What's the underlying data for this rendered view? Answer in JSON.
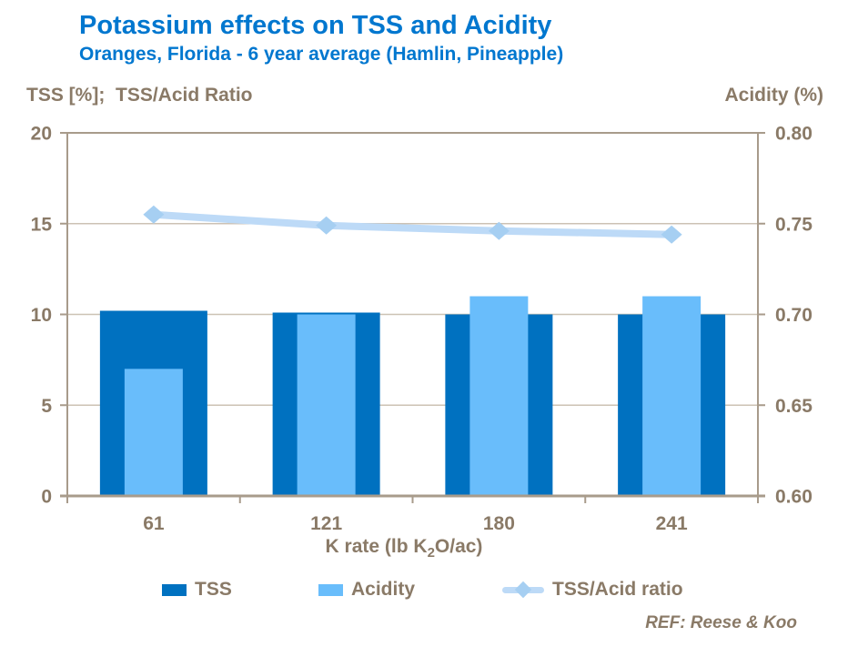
{
  "header": {
    "title": "Potassium effects on TSS and Acidity",
    "subtitle": "Oranges, Florida - 6 year average (Hamlin, Pineapple)"
  },
  "axes": {
    "left_title": "TSS [%];  TSS/Acid Ratio",
    "right_title": "Acidity (%)",
    "x_title_parts": {
      "pre": "K rate (lb K",
      "sub": "2",
      "post": "O/ac)"
    },
    "left_ticks": {
      "values": [
        0,
        5,
        10,
        15,
        20
      ],
      "labels": [
        "0",
        "5",
        "10",
        "15",
        "20"
      ]
    },
    "right_ticks": {
      "values": [
        0.6,
        0.65,
        0.7,
        0.75,
        0.8
      ],
      "labels": [
        "0.60",
        "0.65",
        "0.70",
        "0.75",
        "0.80"
      ]
    }
  },
  "chart_data": {
    "type": "bar",
    "categories": [
      "61",
      "121",
      "180",
      "241"
    ],
    "series": [
      {
        "name": "TSS",
        "type": "bar",
        "axis": "left",
        "values": [
          10.2,
          10.1,
          10.0,
          10.0
        ]
      },
      {
        "name": "Acidity",
        "type": "bar",
        "axis": "right",
        "values": [
          0.67,
          0.7,
          0.71,
          0.71
        ]
      },
      {
        "name": "TSS/Acid ratio",
        "type": "line",
        "axis": "left",
        "values": [
          15.5,
          14.9,
          14.6,
          14.4
        ],
        "marker": "diamond"
      }
    ],
    "title": "Potassium effects on TSS and Acidity",
    "subtitle": "Oranges, Florida - 6 year average (Hamlin, Pineapple)",
    "xlabel": "K rate (lb K₂O/ac)",
    "ylabel_left": "TSS [%];  TSS/Acid Ratio",
    "ylabel_right": "Acidity (%)",
    "ylim_left": [
      0,
      20
    ],
    "ylim_right": [
      0.6,
      0.8
    ],
    "grid": "horizontal",
    "legend_position": "bottom"
  },
  "legend": {
    "tss_label": "TSS",
    "acidity_label": "Acidity",
    "ratio_label": "TSS/Acid ratio"
  },
  "footer": {
    "ref": "REF: Reese & Koo"
  },
  "colors": {
    "title_blue": "#0077cf",
    "text_brown": "#8a7a67",
    "gridline": "#ccc2b4",
    "axis_line": "#a89b8b",
    "tss_bar": "#0071c0",
    "acidity_bar": "#69bdfb",
    "ratio_line": "#bddaf7",
    "ratio_marker": "#a6cff2"
  }
}
